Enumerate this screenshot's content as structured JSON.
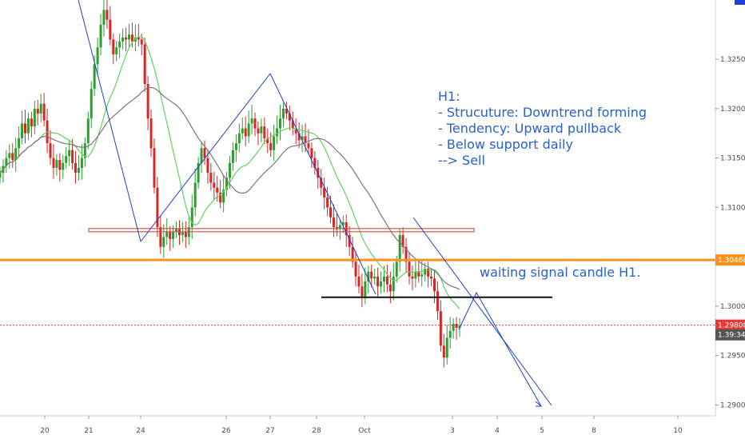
{
  "chart_data": {
    "type": "candlestick",
    "timeframe": "H1",
    "y_axis": {
      "range": [
        1.2889,
        1.331
      ],
      "ticks": [
        "1.32500",
        "1.32000",
        "1.31500",
        "1.31000",
        "1.30000",
        "1.29500",
        "1.29000"
      ],
      "tick_values": [
        1.325,
        1.32,
        1.315,
        1.31,
        1.3,
        1.295,
        1.29
      ]
    },
    "x_axis": {
      "ticks": [
        "20",
        "21",
        "24",
        "26",
        "27",
        "28",
        "Oct",
        "3",
        "4",
        "5",
        "8",
        "10"
      ]
    },
    "price_tags": [
      {
        "label": "1.30468",
        "value": 1.30468,
        "color": "#f7931e"
      },
      {
        "label": "1.29808",
        "value": 1.29808,
        "color": "#e53935"
      },
      {
        "label": "1.39:34",
        "value": 1.2971,
        "color": "#555555"
      }
    ],
    "annotation_lines": [
      "H1:",
      "- Strucuture: Downtrend forming",
      "- Tendency: Upward pullback",
      "- Below support daily",
      "--> Sell"
    ],
    "signal_note": "waiting signal candle H1.",
    "close_series": [
      1.3135,
      1.3142,
      1.315,
      1.3155,
      1.3148,
      1.316,
      1.317,
      1.3185,
      1.3175,
      1.319,
      1.3182,
      1.32,
      1.3195,
      1.3205,
      1.3188,
      1.3165,
      1.315,
      1.314,
      1.3148,
      1.3138,
      1.3145,
      1.3152,
      1.3158,
      1.3145,
      1.3135,
      1.314,
      1.315,
      1.3165,
      1.319,
      1.322,
      1.3245,
      1.3262,
      1.3285,
      1.33,
      1.329,
      1.327,
      1.3255,
      1.3262,
      1.3268,
      1.3272,
      1.327,
      1.3275,
      1.3268,
      1.3272,
      1.327,
      1.3265,
      1.3225,
      1.319,
      1.316,
      1.312,
      1.308,
      1.306,
      1.307,
      1.3075,
      1.3068,
      1.3075,
      1.3078,
      1.3072,
      1.3075,
      1.307,
      1.308,
      1.31,
      1.3125,
      1.3145,
      1.316,
      1.315,
      1.3135,
      1.3125,
      1.312,
      1.3115,
      1.3105,
      1.3118,
      1.313,
      1.3145,
      1.3158,
      1.3165,
      1.3175,
      1.318,
      1.3172,
      1.3185,
      1.319,
      1.318,
      1.3175,
      1.3182,
      1.317,
      1.3165,
      1.3158,
      1.3172,
      1.318,
      1.319,
      1.32,
      1.3195,
      1.3188,
      1.318,
      1.3175,
      1.3168,
      1.3172,
      1.3165,
      1.316,
      1.315,
      1.314,
      1.313,
      1.312,
      1.311,
      1.31,
      1.309,
      1.308,
      1.3078,
      1.3082,
      1.3085,
      1.3072,
      1.306,
      1.3045,
      1.303,
      1.302,
      1.301,
      1.3025,
      1.3035,
      1.3028,
      1.303,
      1.302,
      1.3025,
      1.303,
      1.3022,
      1.3015,
      1.303,
      1.3045,
      1.3072,
      1.306,
      1.3045,
      1.303,
      1.3028,
      1.3035,
      1.303,
      1.3032,
      1.3038,
      1.303,
      1.3028,
      1.3015,
      1.2995,
      1.296,
      1.2948,
      1.2968,
      1.2975,
      1.2982,
      1.2978,
      1.298
    ],
    "moving_averages": [
      {
        "color": "#5ed45e"
      },
      {
        "color": "#777777"
      }
    ],
    "horizontal_levels": [
      {
        "value": 1.30468,
        "color": "#f7931e",
        "style": "solid-thick"
      },
      {
        "value": 1.29808,
        "color": "#e53935",
        "style": "dotted"
      },
      {
        "value": 1.3009,
        "color": "#111111",
        "style": "solid"
      },
      {
        "value": 1.3077,
        "color": "#d9534f",
        "style": "channel"
      }
    ]
  }
}
